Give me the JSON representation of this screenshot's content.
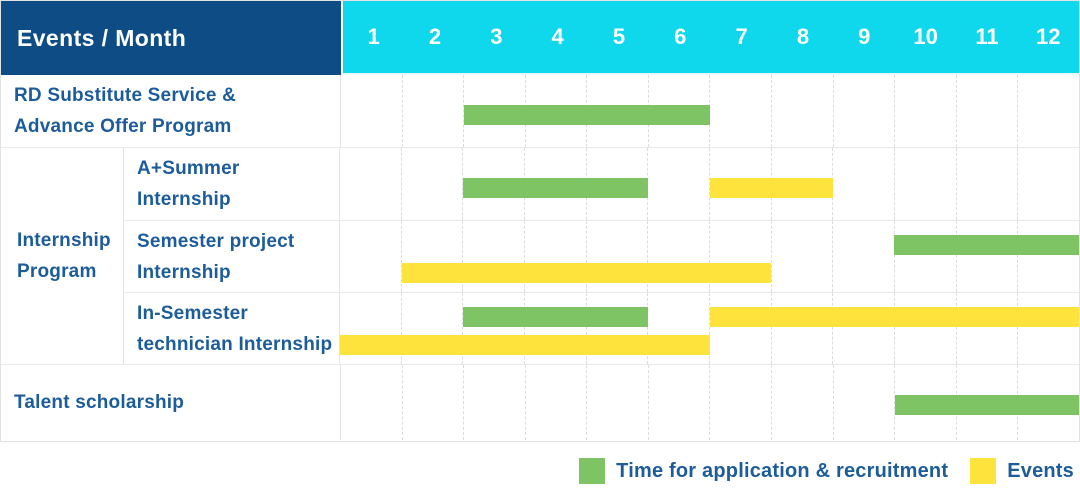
{
  "header": {
    "title": "Events / Month"
  },
  "colors": {
    "header_navy": "#0e4c85",
    "header_cyan": "#0fd7ec",
    "label_blue": "#1d5c9a",
    "application_green": "#7ec464",
    "event_yellow": "#ffe33d"
  },
  "chart_data": {
    "type": "gantt",
    "title": "Events / Month",
    "months": [
      "1",
      "2",
      "3",
      "4",
      "5",
      "6",
      "7",
      "8",
      "9",
      "10",
      "11",
      "12"
    ],
    "group_label": "Internship\nProgram",
    "colors": {
      "application": "#7ec464",
      "event": "#ffe33d"
    },
    "rows": [
      {
        "label": "RD Substitute Service &\nAdvance Offer Program",
        "group": null,
        "bars": [
          {
            "type": "application",
            "start": 3,
            "end": 7,
            "line": 1
          }
        ]
      },
      {
        "label": "A+Summer\nInternship",
        "group": "Internship Program",
        "bars": [
          {
            "type": "application",
            "start": 3,
            "end": 6,
            "line": 1
          },
          {
            "type": "event",
            "start": 7,
            "end": 9,
            "line": 1
          }
        ]
      },
      {
        "label": "Semester project\nInternship",
        "group": "Internship Program",
        "bars": [
          {
            "type": "application",
            "start": 10,
            "end": 13,
            "line": 1
          },
          {
            "type": "event",
            "start": 2,
            "end": 8,
            "line": 2
          }
        ]
      },
      {
        "label": "In-Semester\ntechnician Internship",
        "group": "Internship Program",
        "bars": [
          {
            "type": "application",
            "start": 3,
            "end": 6,
            "line": 1
          },
          {
            "type": "event",
            "start": 7,
            "end": 13,
            "line": 1
          },
          {
            "type": "event",
            "start": 1,
            "end": 7,
            "line": 2
          }
        ]
      },
      {
        "label": "Talent scholarship",
        "group": null,
        "bars": [
          {
            "type": "application",
            "start": 10,
            "end": 13,
            "line": 1
          }
        ]
      }
    ],
    "legend": [
      {
        "type": "application",
        "label": "Time for application & recruitment"
      },
      {
        "type": "event",
        "label": "Events"
      }
    ],
    "layout": {
      "grid": "dashed-vertical",
      "legend_position": "bottom-right"
    }
  }
}
